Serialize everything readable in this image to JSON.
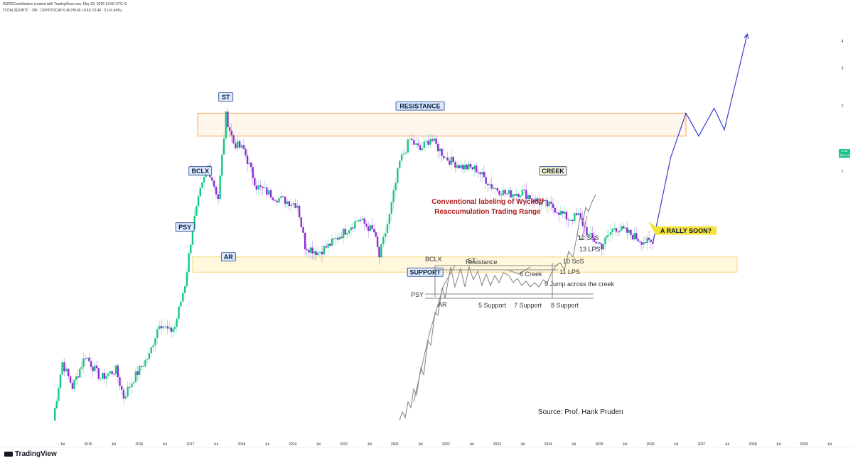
{
  "header": {
    "line1": "WZRDContributors created with TradingView.com, May 26, 2026 19:05 UTC+3",
    "line2": "TOTAL2ES/BTC · 2W · CRYPTOCAP 0.46 H0.46 L0.46 C0.46 · 0 (+0.44%)"
  },
  "footer": {
    "logo_text": "TradingView"
  },
  "price_label": {
    "value": "0.46",
    "sub": "134.14"
  },
  "colors": {
    "up": "#16c784",
    "down": "#8b2bd6",
    "resistance": "#f7a35c",
    "support": "#f6d87a",
    "projection": "#3a3fc8",
    "insert": "#8a8a8a"
  },
  "chart_data": {
    "type": "candlestick",
    "title": "",
    "symbol": "TOTAL2ES/BTC",
    "interval": "2W",
    "scale": "log",
    "x_ticks": [
      "Jul",
      "2015",
      "Jul",
      "2016",
      "Jul",
      "2017",
      "Jul",
      "2018",
      "Jul",
      "2019",
      "Jul",
      "2020",
      "Jul",
      "2021",
      "Jul",
      "2022",
      "Jul",
      "2023",
      "Jul",
      "2024",
      "Jul",
      "2025",
      "Jul",
      "2026",
      "Jul",
      "2027",
      "Jul",
      "2028",
      "Jul",
      "2029",
      "Jul"
    ],
    "y_ticks": [
      4,
      3,
      2,
      1
    ],
    "y_range": [
      0.055,
      5
    ],
    "last_value": 0.46,
    "path_points": [
      [
        2014.62,
        0.07
      ],
      [
        2014.8,
        0.13
      ],
      [
        2015.0,
        0.1
      ],
      [
        2015.25,
        0.14
      ],
      [
        2015.55,
        0.11
      ],
      [
        2015.85,
        0.12
      ],
      [
        2016.0,
        0.09
      ],
      [
        2016.2,
        0.11
      ],
      [
        2016.5,
        0.14
      ],
      [
        2016.7,
        0.2
      ],
      [
        2016.9,
        0.18
      ],
      [
        2017.0,
        0.19
      ],
      [
        2017.2,
        0.3
      ],
      [
        2017.35,
        0.55
      ],
      [
        2017.5,
        0.8
      ],
      [
        2017.65,
        1.05
      ],
      [
        2017.85,
        0.75
      ],
      [
        2018.0,
        1.8
      ],
      [
        2018.15,
        1.35
      ],
      [
        2018.35,
        1.25
      ],
      [
        2018.6,
        0.85
      ],
      [
        2019.0,
        0.75
      ],
      [
        2019.4,
        0.7
      ],
      [
        2019.55,
        0.45
      ],
      [
        2019.8,
        0.42
      ],
      [
        2020.0,
        0.45
      ],
      [
        2020.3,
        0.52
      ],
      [
        2020.6,
        0.6
      ],
      [
        2020.9,
        0.52
      ],
      [
        2021.0,
        0.4
      ],
      [
        2021.2,
        0.62
      ],
      [
        2021.4,
        1.1
      ],
      [
        2021.6,
        1.4
      ],
      [
        2021.8,
        1.25
      ],
      [
        2022.0,
        1.42
      ],
      [
        2022.3,
        1.15
      ],
      [
        2022.6,
        1.05
      ],
      [
        2022.9,
        1.02
      ],
      [
        2023.2,
        0.85
      ],
      [
        2023.5,
        0.78
      ],
      [
        2023.8,
        0.8
      ],
      [
        2024.1,
        0.72
      ],
      [
        2024.4,
        0.68
      ],
      [
        2024.7,
        0.6
      ],
      [
        2024.9,
        0.62
      ],
      [
        2025.1,
        0.5
      ],
      [
        2025.35,
        0.45
      ],
      [
        2025.6,
        0.55
      ],
      [
        2025.85,
        0.52
      ],
      [
        2026.1,
        0.48
      ],
      [
        2026.35,
        0.46
      ]
    ],
    "annotations": [
      {
        "label": "PSY",
        "x": 2017.2,
        "y": 0.55
      },
      {
        "label": "BCLX",
        "x": 2017.5,
        "y": 1.0
      },
      {
        "label": "ST",
        "x": 2018.0,
        "y": 2.2
      },
      {
        "label": "AR",
        "x": 2018.05,
        "y": 0.4
      },
      {
        "label": "RESISTANCE",
        "x": 2021.8,
        "y": 2.0
      },
      {
        "label": "SUPPORT",
        "x": 2021.9,
        "y": 0.34
      },
      {
        "label": "CREEK",
        "x": 2024.4,
        "y": 1.0
      },
      {
        "label": "A RALLY SOON?",
        "x": 2027.0,
        "y": 0.53
      }
    ],
    "resistance_zone": {
      "x_start": 2017.45,
      "x_end": 2027.0,
      "y_low": 1.45,
      "y_high": 1.85
    },
    "support_zone": {
      "x_start": 2017.35,
      "x_end": 2028.0,
      "y_low": 0.34,
      "y_high": 0.4
    },
    "projection": [
      [
        2026.35,
        0.46
      ],
      [
        2026.7,
        1.15
      ],
      [
        2027.0,
        1.85
      ],
      [
        2027.25,
        1.45
      ],
      [
        2027.55,
        1.95
      ],
      [
        2027.75,
        1.55
      ],
      [
        2028.2,
        4.3
      ]
    ]
  },
  "insert": {
    "title_line1": "Conventional labeling of Wyckoff",
    "title_line2": "Reaccumulation Trading Range",
    "labels": {
      "bclx": "BCLX",
      "st": "ST",
      "resistance": "Resistance",
      "psy": "PSY",
      "ar": "AR",
      "creek6": "6 Creek",
      "sos12": "12 SoS",
      "lps13": "13 LPS",
      "sos10": "10 SoS",
      "lps11": "11 LPS",
      "jump9": "9 Jump across the creek",
      "support5": "5 Support",
      "support7": "7 Support",
      "support8": "8 Support"
    },
    "source": "Source: Prof. Hank Pruden"
  }
}
